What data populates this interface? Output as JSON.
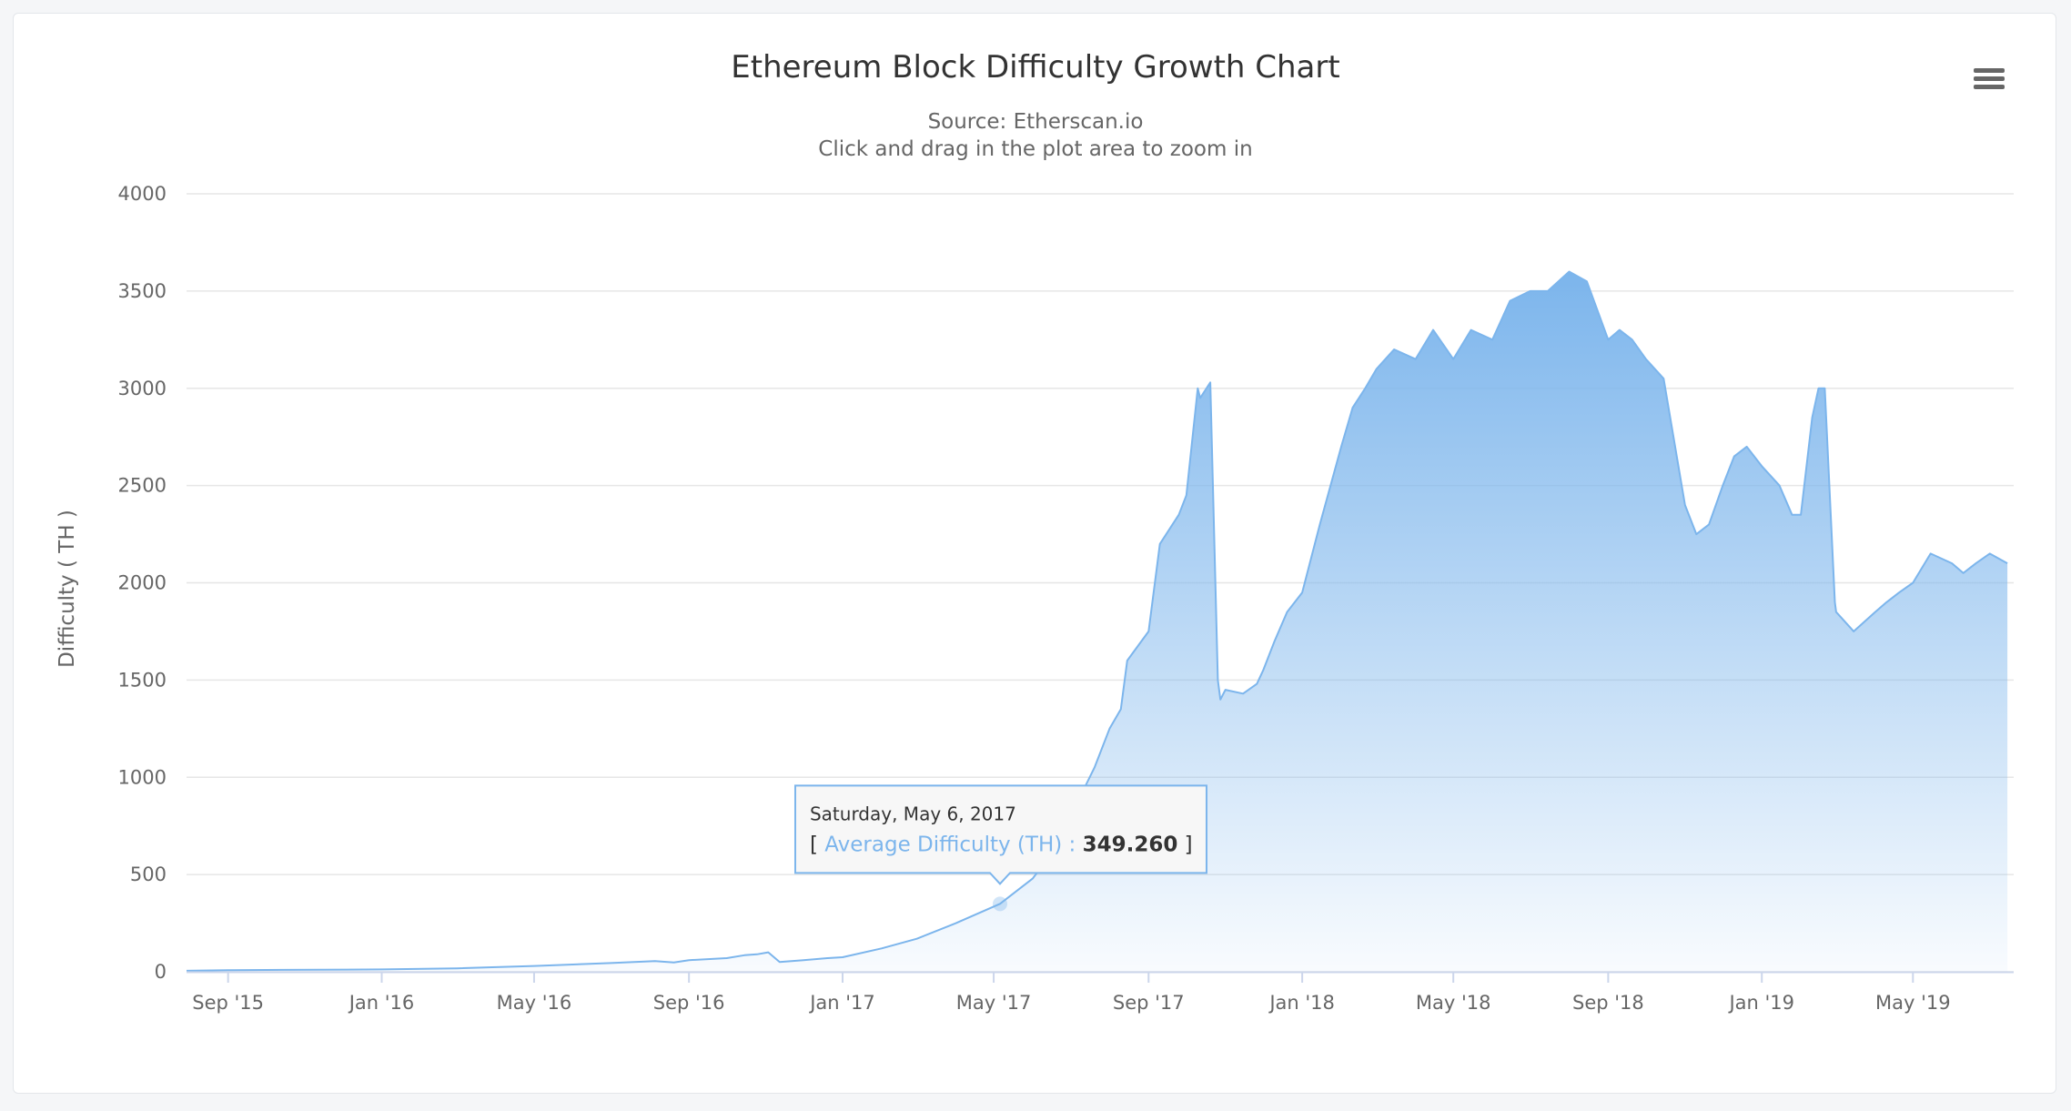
{
  "chart_data": {
    "type": "area",
    "title": "Ethereum Block Difficulty Growth Chart",
    "subtitle": "Source: Etherscan.io",
    "hint": "Click and drag in the plot area to zoom in",
    "ylabel": "Difficulty ( TH )",
    "xlabel": "",
    "ylim": [
      0,
      4000
    ],
    "y_ticks": [
      0,
      500,
      1000,
      1500,
      2000,
      2500,
      3000,
      3500,
      4000
    ],
    "xlim": [
      "2015-07-30",
      "2019-07-20"
    ],
    "x_ticks": [
      {
        "date": "2015-09-01",
        "label": "Sep '15"
      },
      {
        "date": "2016-01-01",
        "label": "Jan '16"
      },
      {
        "date": "2016-05-01",
        "label": "May '16"
      },
      {
        "date": "2016-09-01",
        "label": "Sep '16"
      },
      {
        "date": "2017-01-01",
        "label": "Jan '17"
      },
      {
        "date": "2017-05-01",
        "label": "May '17"
      },
      {
        "date": "2017-09-01",
        "label": "Sep '17"
      },
      {
        "date": "2018-01-01",
        "label": "Jan '18"
      },
      {
        "date": "2018-05-01",
        "label": "May '18"
      },
      {
        "date": "2018-09-01",
        "label": "Sep '18"
      },
      {
        "date": "2019-01-01",
        "label": "Jan '19"
      },
      {
        "date": "2019-05-01",
        "label": "May '19"
      }
    ],
    "grid": true,
    "legend": "none",
    "series": [
      {
        "color": "#7cb5ec",
        "x": [
          "2015-07-30",
          "2015-09-01",
          "2015-10-15",
          "2016-01-01",
          "2016-03-01",
          "2016-05-01",
          "2016-07-01",
          "2016-08-05",
          "2016-08-20",
          "2016-09-01",
          "2016-10-01",
          "2016-10-15",
          "2016-10-25",
          "2016-11-03",
          "2016-11-12",
          "2016-12-01",
          "2016-12-20",
          "2017-01-01",
          "2017-02-01",
          "2017-03-01",
          "2017-04-01",
          "2017-05-06",
          "2017-06-01",
          "2017-06-15",
          "2017-07-01",
          "2017-07-20",
          "2017-08-01",
          "2017-08-10",
          "2017-08-15",
          "2017-09-01",
          "2017-09-10",
          "2017-09-25",
          "2017-10-01",
          "2017-10-10",
          "2017-10-12",
          "2017-10-20",
          "2017-10-26",
          "2017-10-28",
          "2017-11-01",
          "2017-11-15",
          "2017-11-26",
          "2017-12-01",
          "2017-12-10",
          "2017-12-20",
          "2018-01-01",
          "2018-01-15",
          "2018-02-01",
          "2018-02-10",
          "2018-02-20",
          "2018-03-01",
          "2018-03-15",
          "2018-04-01",
          "2018-04-15",
          "2018-05-01",
          "2018-05-15",
          "2018-06-01",
          "2018-06-15",
          "2018-07-01",
          "2018-07-15",
          "2018-08-01",
          "2018-08-15",
          "2018-09-01",
          "2018-09-10",
          "2018-09-20",
          "2018-10-01",
          "2018-10-15",
          "2018-11-01",
          "2018-11-10",
          "2018-11-20",
          "2018-12-01",
          "2018-12-10",
          "2018-12-20",
          "2019-01-01",
          "2019-01-15",
          "2019-01-25",
          "2019-02-01",
          "2019-02-10",
          "2019-02-15",
          "2019-02-20",
          "2019-02-28",
          "2019-03-01",
          "2019-03-15",
          "2019-04-01",
          "2019-04-10",
          "2019-04-20",
          "2019-05-01",
          "2019-05-15",
          "2019-06-01",
          "2019-06-10",
          "2019-06-20",
          "2019-07-01",
          "2019-07-15"
        ],
        "y": [
          5,
          8,
          10,
          12,
          18,
          30,
          45,
          55,
          48,
          60,
          70,
          85,
          90,
          100,
          50,
          60,
          70,
          75,
          120,
          170,
          250,
          349.26,
          480,
          600,
          800,
          1050,
          1250,
          1350,
          1600,
          1750,
          2200,
          2350,
          2450,
          3000,
          2950,
          3030,
          1500,
          1400,
          1450,
          1430,
          1480,
          1550,
          1700,
          1850,
          1950,
          2300,
          2700,
          2900,
          3000,
          3100,
          3200,
          3150,
          3300,
          3150,
          3300,
          3250,
          3450,
          3500,
          3500,
          3600,
          3550,
          3250,
          3300,
          3250,
          3150,
          3050,
          2400,
          2250,
          2300,
          2500,
          2650,
          2700,
          2600,
          2500,
          2350,
          2350,
          2850,
          3000,
          3000,
          1900,
          1850,
          1750,
          1850,
          1900,
          1950,
          2000,
          2150,
          2100,
          2050,
          2100,
          2150,
          2100
        ]
      }
    ],
    "tooltip": {
      "date_label": "Saturday, May 6, 2017",
      "series_label": "Average Difficulty (TH)",
      "value_label": "349.260",
      "x": "2017-05-06",
      "y": 349.26
    }
  },
  "menu": {
    "icon": "hamburger-menu-icon"
  }
}
